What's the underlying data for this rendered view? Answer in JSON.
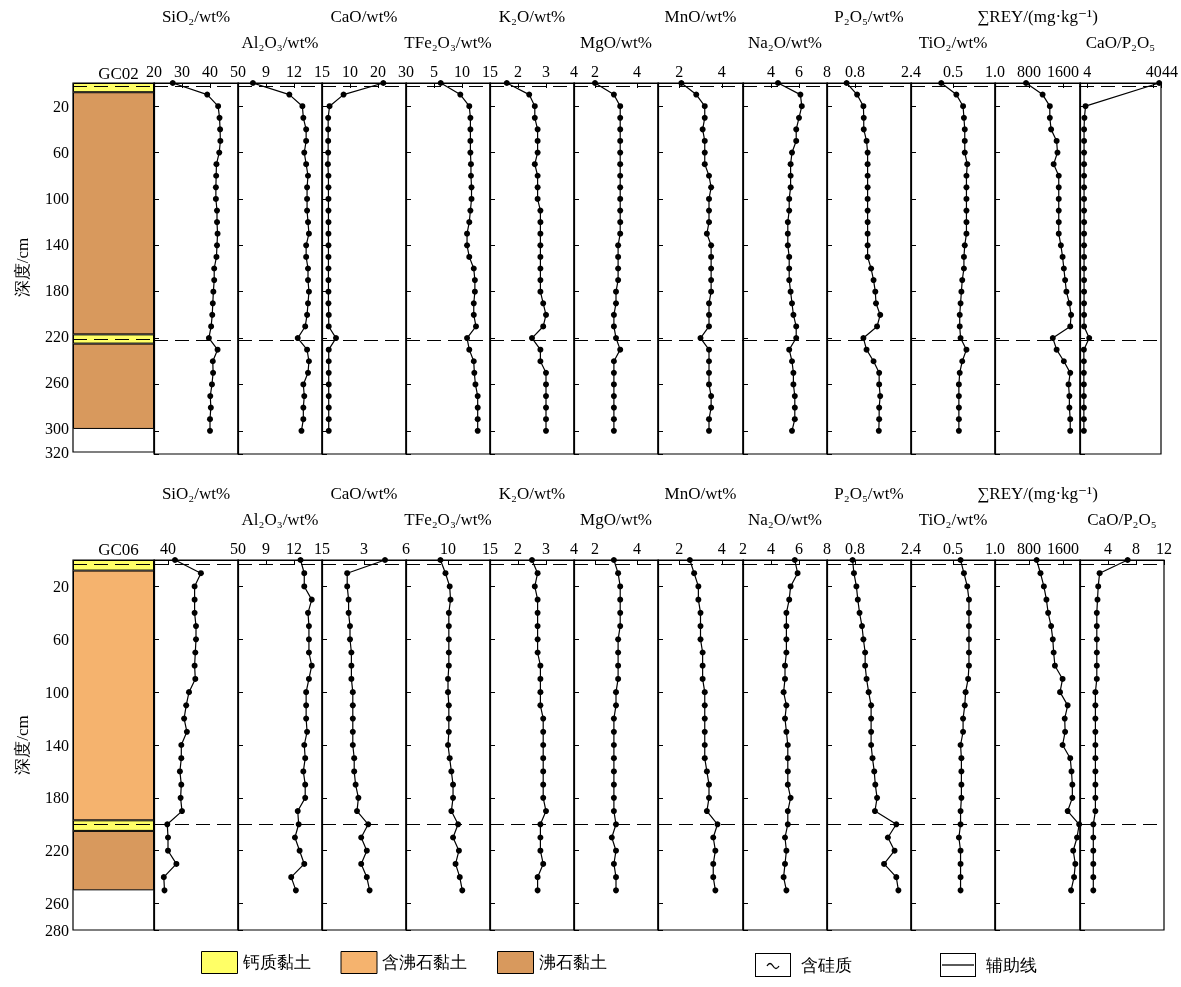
{
  "chart_data": [
    {
      "type": "bar",
      "title": "GC02",
      "ylabel": "深度/cm",
      "categories": [
        null
      ],
      "stacked": true,
      "ylim": [
        320,
        0
      ],
      "yticks": [
        20,
        60,
        100,
        140,
        180,
        220,
        260,
        300,
        320
      ],
      "tick_labels": "y",
      "ref_lines": [
        {
          "axis": "y",
          "value": 3,
          "line_style": "dashed",
          "color": "#000000"
        },
        {
          "axis": "y",
          "value": 222,
          "line_style": "dashed",
          "color": "#000000"
        }
      ],
      "series": [
        {
          "color": "#ffff66",
          "values": [
            8
          ]
        },
        {
          "color": "#d8995d",
          "values": [
            210
          ]
        },
        {
          "color": "#ffff66",
          "values": [
            8
          ]
        },
        {
          "color": "#d8995d",
          "values": [
            74
          ]
        }
      ]
    },
    {
      "type": "line",
      "xlabel": "SiO₂/wt%",
      "xlim": [
        20,
        50
      ],
      "xticks": [
        20,
        30,
        40,
        50
      ],
      "ylim": [
        320,
        0
      ],
      "yticks": [
        20,
        60,
        100,
        140,
        180,
        220,
        260,
        300,
        320
      ],
      "tick_labels": "x",
      "color": "#000000",
      "marker": "circle",
      "ref_lines": [
        {
          "axis": "y",
          "value": 3,
          "line_style": "dashed",
          "color": "#000000"
        },
        {
          "axis": "y",
          "value": 222,
          "line_style": "dashed",
          "color": "#000000"
        }
      ],
      "x": [
        26.7,
        39.0,
        42.9,
        43.4,
        43.6,
        43.7,
        43.3,
        42.3,
        42.2,
        42.1,
        42.1,
        42.5,
        42.5,
        42.7,
        42.5,
        42.3,
        41.5,
        41.5,
        41.2,
        41.0,
        40.8,
        40.4,
        39.6,
        42.7,
        41.0,
        41.1,
        40.7,
        40.1,
        40.3,
        40.0,
        40.0
      ],
      "values": [
        0,
        10,
        20,
        30,
        40,
        50,
        60,
        70,
        80,
        90,
        100,
        110,
        120,
        130,
        140,
        150,
        160,
        170,
        180,
        190,
        200,
        210,
        220,
        230,
        240,
        250,
        260,
        270,
        280,
        290,
        300
      ]
    },
    {
      "type": "line",
      "xlabel": "Al₂O₃/wt%",
      "xlim": [
        6,
        15
      ],
      "xticks": [
        9,
        12,
        15
      ],
      "ylim": [
        320,
        0
      ],
      "yticks": [
        20,
        60,
        100,
        140,
        180,
        220,
        260,
        300,
        320
      ],
      "tick_labels": "x",
      "color": "#000000",
      "marker": "circle",
      "ref_lines": [
        {
          "axis": "y",
          "value": 3,
          "line_style": "dashed",
          "color": "#000000"
        },
        {
          "axis": "y",
          "value": 222,
          "line_style": "dashed",
          "color": "#000000"
        }
      ],
      "x": [
        7.6,
        11.5,
        12.9,
        13.0,
        13.3,
        13.3,
        13.1,
        13.3,
        13.5,
        13.4,
        13.4,
        13.4,
        13.5,
        13.6,
        13.3,
        13.3,
        13.5,
        13.5,
        13.6,
        13.5,
        13.4,
        13.2,
        12.4,
        13.4,
        13.6,
        13.5,
        13.0,
        13.1,
        13.0,
        13.0,
        12.8
      ],
      "values": [
        0,
        10,
        20,
        30,
        40,
        50,
        60,
        70,
        80,
        90,
        100,
        110,
        120,
        130,
        140,
        150,
        160,
        170,
        180,
        190,
        200,
        210,
        220,
        230,
        240,
        250,
        260,
        270,
        280,
        290,
        300
      ]
    },
    {
      "type": "line",
      "xlabel": "CaO/wt%",
      "xlim": [
        0,
        30
      ],
      "xticks": [
        10,
        20,
        30
      ],
      "ylim": [
        320,
        0
      ],
      "yticks": [
        20,
        60,
        100,
        140,
        180,
        220,
        260,
        300,
        320
      ],
      "tick_labels": "x",
      "color": "#000000",
      "marker": "circle",
      "ref_lines": [
        {
          "axis": "y",
          "value": 3,
          "line_style": "dashed",
          "color": "#000000"
        },
        {
          "axis": "y",
          "value": 222,
          "line_style": "dashed",
          "color": "#000000"
        }
      ],
      "x": [
        21.9,
        7.7,
        2.7,
        2.2,
        2.2,
        2.2,
        2.2,
        2.1,
        2.3,
        2.3,
        2.3,
        2.3,
        2.3,
        2.3,
        2.3,
        2.3,
        2.3,
        2.3,
        2.3,
        2.3,
        2.4,
        2.4,
        5.0,
        2.4,
        2.4,
        2.4,
        2.4,
        2.4,
        2.4,
        2.4,
        2.4
      ],
      "values": [
        0,
        10,
        20,
        30,
        40,
        50,
        60,
        70,
        80,
        90,
        100,
        110,
        120,
        130,
        140,
        150,
        160,
        170,
        180,
        190,
        200,
        210,
        220,
        230,
        240,
        250,
        260,
        270,
        280,
        290,
        300
      ]
    },
    {
      "type": "line",
      "xlabel": "TFe₂O₃/wt%",
      "xlim": [
        0,
        15
      ],
      "xticks": [
        5,
        10,
        15
      ],
      "ylim": [
        320,
        0
      ],
      "yticks": [
        20,
        60,
        100,
        140,
        180,
        220,
        260,
        300,
        320
      ],
      "tick_labels": "x",
      "color": "#000000",
      "marker": "circle",
      "ref_lines": [
        {
          "axis": "y",
          "value": 3,
          "line_style": "dashed",
          "color": "#000000"
        },
        {
          "axis": "y",
          "value": 222,
          "line_style": "dashed",
          "color": "#000000"
        }
      ],
      "x": [
        6.2,
        9.7,
        11.3,
        11.5,
        11.5,
        11.5,
        11.5,
        11.6,
        11.6,
        11.7,
        11.7,
        11.5,
        11.3,
        10.9,
        10.9,
        11.3,
        12.1,
        12.3,
        12.3,
        12.1,
        12.1,
        12.5,
        10.9,
        11.3,
        12.1,
        12.2,
        12.4,
        12.8,
        12.8,
        12.8,
        12.8
      ],
      "values": [
        0,
        10,
        20,
        30,
        40,
        50,
        60,
        70,
        80,
        90,
        100,
        110,
        120,
        130,
        140,
        150,
        160,
        170,
        180,
        190,
        200,
        210,
        220,
        230,
        240,
        250,
        260,
        270,
        280,
        290,
        300
      ]
    },
    {
      "type": "line",
      "xlabel": "K₂O/wt%",
      "xlim": [
        1,
        4
      ],
      "xticks": [
        2,
        3,
        4
      ],
      "ylim": [
        320,
        0
      ],
      "yticks": [
        20,
        60,
        100,
        140,
        180,
        220,
        260,
        300,
        320
      ],
      "tick_labels": "x",
      "color": "#000000",
      "marker": "circle",
      "ref_lines": [
        {
          "axis": "y",
          "value": 3,
          "line_style": "dashed",
          "color": "#000000"
        },
        {
          "axis": "y",
          "value": 222,
          "line_style": "dashed",
          "color": "#000000"
        }
      ],
      "x": [
        1.6,
        2.4,
        2.6,
        2.6,
        2.7,
        2.7,
        2.7,
        2.6,
        2.7,
        2.7,
        2.7,
        2.8,
        2.8,
        2.8,
        2.8,
        2.8,
        2.8,
        2.8,
        2.8,
        2.9,
        3.0,
        2.9,
        2.5,
        2.8,
        2.8,
        3.0,
        3.0,
        3.0,
        3.0,
        3.0,
        3.0
      ],
      "values": [
        0,
        10,
        20,
        30,
        40,
        50,
        60,
        70,
        80,
        90,
        100,
        110,
        120,
        130,
        140,
        150,
        160,
        170,
        180,
        190,
        200,
        210,
        220,
        230,
        240,
        250,
        260,
        270,
        280,
        290,
        300
      ]
    },
    {
      "type": "line",
      "xlabel": "MgO/wt%",
      "xlim": [
        1,
        5
      ],
      "xticks": [
        2,
        4
      ],
      "ylim": [
        320,
        0
      ],
      "yticks": [
        20,
        60,
        100,
        140,
        180,
        220,
        260,
        300,
        320
      ],
      "tick_labels": "x",
      "color": "#000000",
      "marker": "circle",
      "ref_lines": [
        {
          "axis": "y",
          "value": 3,
          "line_style": "dashed",
          "color": "#000000"
        },
        {
          "axis": "y",
          "value": 222,
          "line_style": "dashed",
          "color": "#000000"
        }
      ],
      "x": [
        2.0,
        2.9,
        3.2,
        3.2,
        3.2,
        3.2,
        3.2,
        3.2,
        3.2,
        3.2,
        3.2,
        3.2,
        3.2,
        3.2,
        3.1,
        3.1,
        3.1,
        3.1,
        3.0,
        3.0,
        2.9,
        2.9,
        3.0,
        3.2,
        2.9,
        2.9,
        2.9,
        2.9,
        2.9,
        2.9,
        2.9
      ],
      "values": [
        0,
        10,
        20,
        30,
        40,
        50,
        60,
        70,
        80,
        90,
        100,
        110,
        120,
        130,
        140,
        150,
        160,
        170,
        180,
        190,
        200,
        210,
        220,
        230,
        240,
        250,
        260,
        270,
        280,
        290,
        300
      ]
    },
    {
      "type": "line",
      "xlabel": "MnO/wt%",
      "xlim": [
        1,
        5
      ],
      "xticks": [
        2,
        4
      ],
      "ylim": [
        320,
        0
      ],
      "yticks": [
        20,
        60,
        100,
        140,
        180,
        220,
        260,
        300,
        320
      ],
      "tick_labels": "x",
      "color": "#000000",
      "marker": "circle",
      "ref_lines": [
        {
          "axis": "y",
          "value": 3,
          "line_style": "dashed",
          "color": "#000000"
        },
        {
          "axis": "y",
          "value": 222,
          "line_style": "dashed",
          "color": "#000000"
        }
      ],
      "x": [
        2.1,
        2.8,
        3.2,
        3.2,
        3.1,
        3.2,
        3.2,
        3.2,
        3.4,
        3.5,
        3.4,
        3.4,
        3.4,
        3.3,
        3.5,
        3.5,
        3.5,
        3.5,
        3.5,
        3.4,
        3.4,
        3.4,
        3.0,
        3.4,
        3.4,
        3.4,
        3.4,
        3.5,
        3.5,
        3.4,
        3.4
      ],
      "values": [
        0,
        10,
        20,
        30,
        40,
        50,
        60,
        70,
        80,
        90,
        100,
        110,
        120,
        130,
        140,
        150,
        160,
        170,
        180,
        190,
        200,
        210,
        220,
        230,
        240,
        250,
        260,
        270,
        280,
        290,
        300
      ]
    },
    {
      "type": "line",
      "xlabel": "Na₂O/wt%",
      "xlim": [
        2,
        8
      ],
      "xticks": [
        4,
        6,
        8
      ],
      "ylim": [
        320,
        0
      ],
      "yticks": [
        20,
        60,
        100,
        140,
        180,
        220,
        260,
        300,
        320
      ],
      "tick_labels": "x",
      "color": "#000000",
      "marker": "circle",
      "ref_lines": [
        {
          "axis": "y",
          "value": 3,
          "line_style": "dashed",
          "color": "#000000"
        },
        {
          "axis": "y",
          "value": 222,
          "line_style": "dashed",
          "color": "#000000"
        }
      ],
      "x": [
        4.5,
        6.1,
        6.2,
        6.0,
        5.8,
        5.8,
        5.5,
        5.4,
        5.4,
        5.4,
        5.3,
        5.3,
        5.2,
        5.2,
        5.2,
        5.3,
        5.3,
        5.3,
        5.4,
        5.5,
        5.6,
        5.8,
        5.8,
        5.3,
        5.5,
        5.6,
        5.6,
        5.7,
        5.7,
        5.7,
        5.5
      ],
      "values": [
        0,
        10,
        20,
        30,
        40,
        50,
        60,
        70,
        80,
        90,
        100,
        110,
        120,
        130,
        140,
        150,
        160,
        170,
        180,
        190,
        200,
        210,
        220,
        230,
        240,
        250,
        260,
        270,
        280,
        290,
        300
      ]
    },
    {
      "type": "line",
      "xlabel": "P₂O₅/wt%",
      "xlim": [
        0,
        2.4
      ],
      "xticks": [
        0.8,
        2.4
      ],
      "ylim": [
        320,
        0
      ],
      "yticks": [
        20,
        60,
        100,
        140,
        180,
        220,
        260,
        300,
        320
      ],
      "tick_labels": "x",
      "color": "#000000",
      "marker": "circle",
      "ref_lines": [
        {
          "axis": "y",
          "value": 3,
          "line_style": "dashed",
          "color": "#000000"
        },
        {
          "axis": "y",
          "value": 222,
          "line_style": "dashed",
          "color": "#000000"
        }
      ],
      "x": [
        0.56,
        0.86,
        1.04,
        1.05,
        1.05,
        1.13,
        1.16,
        1.16,
        1.16,
        1.16,
        1.16,
        1.16,
        1.16,
        1.16,
        1.16,
        1.16,
        1.26,
        1.33,
        1.38,
        1.4,
        1.52,
        1.43,
        1.04,
        1.13,
        1.33,
        1.49,
        1.49,
        1.52,
        1.49,
        1.49,
        1.48
      ],
      "values": [
        0,
        10,
        20,
        30,
        40,
        50,
        60,
        70,
        80,
        90,
        100,
        110,
        120,
        130,
        140,
        150,
        160,
        170,
        180,
        190,
        200,
        210,
        220,
        230,
        240,
        250,
        260,
        270,
        280,
        290,
        300
      ]
    },
    {
      "type": "line",
      "xlabel": "TiO₂/wt%",
      "xlim": [
        0,
        1
      ],
      "xticks": [
        0.5,
        {
          "value": 1,
          "label": "1.0"
        }
      ],
      "ylim": [
        320,
        0
      ],
      "yticks": [
        20,
        60,
        100,
        140,
        180,
        220,
        260,
        300,
        320
      ],
      "tick_labels": "x",
      "color": "#000000",
      "marker": "circle",
      "ref_lines": [
        {
          "axis": "y",
          "value": 3,
          "line_style": "dashed",
          "color": "#000000"
        },
        {
          "axis": "y",
          "value": 222,
          "line_style": "dashed",
          "color": "#000000"
        }
      ],
      "x": [
        0.36,
        0.54,
        0.62,
        0.63,
        0.64,
        0.64,
        0.64,
        0.67,
        0.66,
        0.66,
        0.66,
        0.66,
        0.66,
        0.66,
        0.64,
        0.63,
        0.63,
        0.61,
        0.6,
        0.59,
        0.58,
        0.58,
        0.59,
        0.66,
        0.61,
        0.58,
        0.57,
        0.57,
        0.57,
        0.57,
        0.57
      ],
      "values": [
        0,
        10,
        20,
        30,
        40,
        50,
        60,
        70,
        80,
        90,
        100,
        110,
        120,
        130,
        140,
        150,
        160,
        170,
        180,
        190,
        200,
        210,
        220,
        230,
        240,
        250,
        260,
        270,
        280,
        290,
        300
      ]
    },
    {
      "type": "line",
      "xlabel": "∑REY/(mg·kg⁻¹)",
      "xlim": [
        0,
        2000
      ],
      "xticks": [
        800,
        1600
      ],
      "ylim": [
        320,
        0
      ],
      "yticks": [
        20,
        60,
        100,
        140,
        180,
        220,
        260,
        300,
        320
      ],
      "tick_labels": "x",
      "color": "#000000",
      "marker": "circle",
      "ref_lines": [
        {
          "axis": "y",
          "value": 3,
          "line_style": "dashed",
          "color": "#000000"
        },
        {
          "axis": "y",
          "value": 222,
          "line_style": "dashed",
          "color": "#000000"
        }
      ],
      "x": [
        730,
        1120,
        1290,
        1290,
        1320,
        1450,
        1470,
        1380,
        1500,
        1500,
        1500,
        1500,
        1500,
        1500,
        1550,
        1590,
        1620,
        1650,
        1680,
        1750,
        1790,
        1770,
        1360,
        1450,
        1620,
        1770,
        1730,
        1750,
        1750,
        1770,
        1770
      ],
      "values": [
        0,
        10,
        20,
        30,
        40,
        50,
        60,
        70,
        80,
        90,
        100,
        110,
        120,
        130,
        140,
        150,
        160,
        170,
        180,
        190,
        200,
        210,
        220,
        230,
        240,
        250,
        260,
        270,
        280,
        290,
        300
      ]
    },
    {
      "type": "line",
      "xlabel": "CaO/P₂O₅",
      "xlim": [
        0,
        44
      ],
      "xticks": [
        4,
        40,
        44
      ],
      "ylim": [
        320,
        0
      ],
      "yticks": [
        20,
        60,
        100,
        140,
        180,
        220,
        260,
        300,
        320
      ],
      "tick_labels": "x",
      "color": "#000000",
      "marker": "circle",
      "ref_lines": [
        {
          "axis": "y",
          "value": 3,
          "line_style": "dashed",
          "color": "#000000"
        },
        {
          "axis": "y",
          "value": 222,
          "line_style": "dashed",
          "color": "#000000"
        }
      ],
      "x": [
        43,
        3.0,
        2.4,
        2.2,
        2.2,
        2.2,
        2.2,
        2.2,
        2.2,
        2.2,
        2.2,
        2.2,
        2.2,
        2.2,
        2.2,
        2.2,
        2.2,
        2.2,
        2.2,
        2.2,
        2.2,
        5.0,
        2.1,
        2.1,
        2.1,
        2.1,
        2.1,
        2.1,
        2.1,
        2.1
      ],
      "values": [
        0,
        20,
        30,
        40,
        50,
        60,
        70,
        80,
        90,
        100,
        110,
        120,
        130,
        140,
        150,
        160,
        170,
        180,
        190,
        200,
        210,
        220,
        230,
        240,
        250,
        260,
        270,
        280,
        290,
        300
      ]
    },
    {
      "type": "bar",
      "title": "GC06",
      "ylabel": "深度/cm",
      "categories": [
        null
      ],
      "stacked": true,
      "ylim": [
        280,
        0
      ],
      "yticks": [
        20,
        60,
        100,
        140,
        180,
        220,
        260,
        280
      ],
      "tick_labels": "y",
      "legend": "bottom",
      "annotations": [
        "含硅质",
        "辅助线"
      ],
      "ref_lines": [
        {
          "axis": "y",
          "value": 3,
          "line_style": "dashed",
          "color": "#000000"
        },
        {
          "axis": "y",
          "value": 200,
          "line_style": "dashed",
          "color": "#000000"
        }
      ],
      "series": [
        {
          "name": "钙质黏土",
          "color": "#ffff66",
          "values": [
            8
          ]
        },
        {
          "name": "含沸石黏土",
          "color": "#f5b36e",
          "values": [
            189
          ]
        },
        {
          "color": "#ffff66",
          "values": [
            8
          ]
        },
        {
          "name": "沸石黏土",
          "color": "#d8995d",
          "values": [
            45
          ]
        }
      ]
    },
    {
      "type": "line",
      "xlabel": "SiO₂/wt%",
      "xlim": [
        38,
        50
      ],
      "xticks": [
        40,
        50
      ],
      "ylim": [
        280,
        0
      ],
      "yticks": [
        20,
        60,
        100,
        140,
        180,
        220,
        260,
        280
      ],
      "tick_labels": "x",
      "color": "#000000",
      "marker": "circle",
      "ref_lines": [
        {
          "axis": "y",
          "value": 3,
          "line_style": "dashed",
          "color": "#000000"
        },
        {
          "axis": "y",
          "value": 200,
          "line_style": "dashed",
          "color": "#000000"
        }
      ],
      "x": [
        41.0,
        44.7,
        43.8,
        43.8,
        43.8,
        44.0,
        44.0,
        43.9,
        43.8,
        43.9,
        43.0,
        42.6,
        42.3,
        42.7,
        41.9,
        41.9,
        41.7,
        41.9,
        41.8,
        42.0,
        39.9,
        40.0,
        40.0,
        41.2,
        39.4,
        39.5
      ],
      "values": [
        0,
        10,
        20,
        30,
        40,
        50,
        60,
        70,
        80,
        90,
        100,
        110,
        120,
        130,
        140,
        150,
        160,
        170,
        180,
        190,
        200,
        210,
        220,
        230,
        240,
        250
      ]
    },
    {
      "type": "line",
      "xlabel": "Al₂O₃/wt%",
      "xlim": [
        6,
        15
      ],
      "xticks": [
        9,
        12,
        15
      ],
      "ylim": [
        280,
        0
      ],
      "yticks": [
        20,
        60,
        100,
        140,
        180,
        220,
        260,
        280
      ],
      "tick_labels": "x",
      "color": "#000000",
      "marker": "circle",
      "ref_lines": [
        {
          "axis": "y",
          "value": 3,
          "line_style": "dashed",
          "color": "#000000"
        },
        {
          "axis": "y",
          "value": 200,
          "line_style": "dashed",
          "color": "#000000"
        }
      ],
      "x": [
        12.7,
        13.1,
        13.1,
        13.9,
        13.5,
        13.6,
        13.6,
        13.6,
        13.9,
        13.6,
        13.3,
        13.3,
        13.3,
        13.4,
        13.1,
        13.2,
        13.0,
        13.2,
        13.2,
        12.4,
        12.5,
        12.1,
        12.6,
        13.1,
        11.7,
        12.2
      ],
      "values": [
        0,
        10,
        20,
        30,
        40,
        50,
        60,
        70,
        80,
        90,
        100,
        110,
        120,
        130,
        140,
        150,
        160,
        170,
        180,
        190,
        200,
        210,
        220,
        230,
        240,
        250
      ]
    },
    {
      "type": "line",
      "xlabel": "CaO/wt%",
      "xlim": [
        0,
        6
      ],
      "xticks": [
        3,
        6
      ],
      "ylim": [
        280,
        0
      ],
      "yticks": [
        20,
        60,
        100,
        140,
        180,
        220,
        260,
        280
      ],
      "tick_labels": "x",
      "color": "#000000",
      "marker": "circle",
      "ref_lines": [
        {
          "axis": "y",
          "value": 3,
          "line_style": "dashed",
          "color": "#000000"
        },
        {
          "axis": "y",
          "value": 200,
          "line_style": "dashed",
          "color": "#000000"
        }
      ],
      "x": [
        4.5,
        1.8,
        1.8,
        1.9,
        1.9,
        2.0,
        2.0,
        2.1,
        2.1,
        2.1,
        2.2,
        2.2,
        2.2,
        2.2,
        2.2,
        2.3,
        2.3,
        2.4,
        2.6,
        2.5,
        3.3,
        2.8,
        3.2,
        2.8,
        3.2,
        3.4
      ],
      "values": [
        0,
        10,
        20,
        30,
        40,
        50,
        60,
        70,
        80,
        90,
        100,
        110,
        120,
        130,
        140,
        150,
        160,
        170,
        180,
        190,
        200,
        210,
        220,
        230,
        240,
        250
      ]
    },
    {
      "type": "line",
      "xlabel": "TFe₂O₃/wt%",
      "xlim": [
        5,
        15
      ],
      "xticks": [
        10,
        15
      ],
      "ylim": [
        280,
        0
      ],
      "yticks": [
        20,
        60,
        100,
        140,
        180,
        220,
        260,
        280
      ],
      "tick_labels": "x",
      "color": "#000000",
      "marker": "circle",
      "ref_lines": [
        {
          "axis": "y",
          "value": 3,
          "line_style": "dashed",
          "color": "#000000"
        },
        {
          "axis": "y",
          "value": 200,
          "line_style": "dashed",
          "color": "#000000"
        }
      ],
      "x": [
        9.1,
        9.7,
        10.2,
        10.3,
        10.1,
        10.1,
        10.1,
        10.1,
        10.1,
        10.0,
        10.0,
        10.1,
        10.1,
        10.1,
        10.0,
        10.2,
        10.4,
        10.6,
        10.6,
        10.4,
        11.2,
        10.6,
        11.3,
        10.9,
        11.4,
        11.7
      ],
      "values": [
        0,
        10,
        20,
        30,
        40,
        50,
        60,
        70,
        80,
        90,
        100,
        110,
        120,
        130,
        140,
        150,
        160,
        170,
        180,
        190,
        200,
        210,
        220,
        230,
        240,
        250
      ]
    },
    {
      "type": "line",
      "xlabel": "K₂O/wt%",
      "xlim": [
        1,
        4
      ],
      "xticks": [
        2,
        3,
        4
      ],
      "ylim": [
        280,
        0
      ],
      "yticks": [
        20,
        60,
        100,
        140,
        180,
        220,
        260,
        280
      ],
      "tick_labels": "x",
      "color": "#000000",
      "marker": "circle",
      "ref_lines": [
        {
          "axis": "y",
          "value": 3,
          "line_style": "dashed",
          "color": "#000000"
        },
        {
          "axis": "y",
          "value": 200,
          "line_style": "dashed",
          "color": "#000000"
        }
      ],
      "x": [
        2.5,
        2.7,
        2.6,
        2.7,
        2.7,
        2.7,
        2.7,
        2.7,
        2.8,
        2.8,
        2.8,
        2.8,
        2.9,
        2.9,
        2.9,
        2.9,
        2.9,
        2.9,
        2.9,
        3.0,
        2.8,
        2.8,
        2.8,
        2.9,
        2.7,
        2.7
      ],
      "values": [
        0,
        10,
        20,
        30,
        40,
        50,
        60,
        70,
        80,
        90,
        100,
        110,
        120,
        130,
        140,
        150,
        160,
        170,
        180,
        190,
        200,
        210,
        220,
        230,
        240,
        250
      ]
    },
    {
      "type": "line",
      "xlabel": "MgO/wt%",
      "xlim": [
        1,
        5
      ],
      "xticks": [
        2,
        4
      ],
      "ylim": [
        280,
        0
      ],
      "yticks": [
        20,
        60,
        100,
        140,
        180,
        220,
        260,
        280
      ],
      "tick_labels": "x",
      "color": "#000000",
      "marker": "circle",
      "ref_lines": [
        {
          "axis": "y",
          "value": 3,
          "line_style": "dashed",
          "color": "#000000"
        },
        {
          "axis": "y",
          "value": 200,
          "line_style": "dashed",
          "color": "#000000"
        }
      ],
      "x": [
        2.9,
        3.1,
        3.2,
        3.2,
        3.2,
        3.2,
        3.1,
        3.1,
        3.1,
        3.1,
        3.0,
        3.0,
        2.9,
        2.9,
        2.9,
        2.9,
        2.9,
        2.9,
        2.9,
        2.9,
        3.0,
        2.8,
        3.0,
        2.9,
        3.0,
        3.0
      ],
      "values": [
        0,
        10,
        20,
        30,
        40,
        50,
        60,
        70,
        80,
        90,
        100,
        110,
        120,
        130,
        140,
        150,
        160,
        170,
        180,
        190,
        200,
        210,
        220,
        230,
        240,
        250
      ]
    },
    {
      "type": "line",
      "xlabel": "MnO/wt%",
      "xlim": [
        1,
        5
      ],
      "xticks": [
        2,
        4
      ],
      "ylim": [
        280,
        0
      ],
      "yticks": [
        20,
        60,
        100,
        140,
        180,
        220,
        260,
        280
      ],
      "tick_labels": "x",
      "color": "#000000",
      "marker": "circle",
      "ref_lines": [
        {
          "axis": "y",
          "value": 3,
          "line_style": "dashed",
          "color": "#000000"
        },
        {
          "axis": "y",
          "value": 200,
          "line_style": "dashed",
          "color": "#000000"
        }
      ],
      "x": [
        2.5,
        2.7,
        2.9,
        2.9,
        3.0,
        3.0,
        3.0,
        3.1,
        3.1,
        3.1,
        3.2,
        3.2,
        3.2,
        3.2,
        3.2,
        3.2,
        3.3,
        3.4,
        3.4,
        3.3,
        3.8,
        3.6,
        3.7,
        3.6,
        3.6,
        3.7
      ],
      "values": [
        0,
        10,
        20,
        30,
        40,
        50,
        60,
        70,
        80,
        90,
        100,
        110,
        120,
        130,
        140,
        150,
        160,
        170,
        180,
        190,
        200,
        210,
        220,
        230,
        240,
        250
      ]
    },
    {
      "type": "line",
      "xlabel": "Na₂O/wt%",
      "xlim": [
        2,
        8
      ],
      "xticks": [
        2,
        4,
        6,
        8
      ],
      "ylim": [
        280,
        0
      ],
      "yticks": [
        20,
        60,
        100,
        140,
        180,
        220,
        260,
        280
      ],
      "tick_labels": "x",
      "color": "#000000",
      "marker": "circle",
      "ref_lines": [
        {
          "axis": "y",
          "value": 3,
          "line_style": "dashed",
          "color": "#000000"
        },
        {
          "axis": "y",
          "value": 200,
          "line_style": "dashed",
          "color": "#000000"
        }
      ],
      "x": [
        5.7,
        5.9,
        5.4,
        5.3,
        5.1,
        5.1,
        5.1,
        5.1,
        5.0,
        5.0,
        4.9,
        5.1,
        5.0,
        5.1,
        5.2,
        5.2,
        5.2,
        5.2,
        5.4,
        5.2,
        5.2,
        5.0,
        5.1,
        5.0,
        4.9,
        5.1
      ],
      "values": [
        0,
        10,
        20,
        30,
        40,
        50,
        60,
        70,
        80,
        90,
        100,
        110,
        120,
        130,
        140,
        150,
        160,
        170,
        180,
        190,
        200,
        210,
        220,
        230,
        240,
        250
      ]
    },
    {
      "type": "line",
      "xlabel": "P₂O₅/wt%",
      "xlim": [
        0,
        2.4
      ],
      "xticks": [
        0.8,
        2.4
      ],
      "ylim": [
        280,
        0
      ],
      "yticks": [
        20,
        60,
        100,
        140,
        180,
        220,
        260,
        280
      ],
      "tick_labels": "x",
      "color": "#000000",
      "marker": "circle",
      "ref_lines": [
        {
          "axis": "y",
          "value": 3,
          "line_style": "dashed",
          "color": "#000000"
        },
        {
          "axis": "y",
          "value": 200,
          "line_style": "dashed",
          "color": "#000000"
        }
      ],
      "x": [
        0.73,
        0.77,
        0.84,
        0.88,
        0.93,
        1.0,
        1.04,
        1.09,
        1.09,
        1.13,
        1.19,
        1.26,
        1.26,
        1.26,
        1.26,
        1.3,
        1.35,
        1.38,
        1.43,
        1.37,
        1.98,
        1.74,
        1.93,
        1.63,
        1.98,
        2.04
      ],
      "values": [
        0,
        10,
        20,
        30,
        40,
        50,
        60,
        70,
        80,
        90,
        100,
        110,
        120,
        130,
        140,
        150,
        160,
        170,
        180,
        190,
        200,
        210,
        220,
        230,
        240,
        250
      ]
    },
    {
      "type": "line",
      "xlabel": "TiO₂/wt%",
      "xlim": [
        0,
        1
      ],
      "xticks": [
        0.5,
        {
          "value": 1,
          "label": "1.0"
        }
      ],
      "ylim": [
        280,
        0
      ],
      "yticks": [
        20,
        60,
        100,
        140,
        180,
        220,
        260,
        280
      ],
      "tick_labels": "x",
      "color": "#000000",
      "marker": "circle",
      "ref_lines": [
        {
          "axis": "y",
          "value": 3,
          "line_style": "dashed",
          "color": "#000000"
        },
        {
          "axis": "y",
          "value": 200,
          "line_style": "dashed",
          "color": "#000000"
        }
      ],
      "x": [
        0.59,
        0.63,
        0.67,
        0.69,
        0.69,
        0.69,
        0.69,
        0.69,
        0.69,
        0.68,
        0.65,
        0.64,
        0.62,
        0.62,
        0.59,
        0.6,
        0.6,
        0.6,
        0.6,
        0.59,
        0.59,
        0.57,
        0.59,
        0.59,
        0.59,
        0.59
      ],
      "values": [
        0,
        10,
        20,
        30,
        40,
        50,
        60,
        70,
        80,
        90,
        100,
        110,
        120,
        130,
        140,
        150,
        160,
        170,
        180,
        190,
        200,
        210,
        220,
        230,
        240,
        250
      ]
    },
    {
      "type": "line",
      "xlabel": "∑REY/(mg·kg⁻¹)",
      "xlim": [
        0,
        2000
      ],
      "xticks": [
        800,
        1600
      ],
      "ylim": [
        280,
        0
      ],
      "yticks": [
        20,
        60,
        100,
        140,
        180,
        220,
        260,
        280
      ],
      "tick_labels": "x",
      "color": "#000000",
      "marker": "circle",
      "ref_lines": [
        {
          "axis": "y",
          "value": 3,
          "line_style": "dashed",
          "color": "#000000"
        },
        {
          "axis": "y",
          "value": 200,
          "line_style": "dashed",
          "color": "#000000"
        }
      ],
      "x": [
        980,
        1070,
        1150,
        1210,
        1250,
        1320,
        1360,
        1380,
        1410,
        1590,
        1530,
        1710,
        1640,
        1650,
        1590,
        1770,
        1800,
        1820,
        1820,
        1710,
        1980,
        1930,
        1840,
        1890,
        1860,
        1790
      ],
      "values": [
        0,
        10,
        20,
        30,
        40,
        50,
        60,
        70,
        80,
        90,
        100,
        110,
        120,
        130,
        140,
        150,
        160,
        170,
        180,
        190,
        200,
        210,
        220,
        230,
        240,
        250
      ]
    },
    {
      "type": "line",
      "xlabel": "CaO/P₂O₅",
      "xlim": [
        0,
        12
      ],
      "xticks": [
        4,
        8,
        12
      ],
      "ylim": [
        280,
        0
      ],
      "yticks": [
        20,
        60,
        100,
        140,
        180,
        220,
        260,
        280
      ],
      "tick_labels": "x",
      "color": "#000000",
      "marker": "circle",
      "ref_lines": [
        {
          "axis": "y",
          "value": 3,
          "line_style": "dashed",
          "color": "#000000"
        },
        {
          "axis": "y",
          "value": 200,
          "line_style": "dashed",
          "color": "#000000"
        }
      ],
      "x": [
        6.8,
        2.8,
        2.6,
        2.5,
        2.4,
        2.4,
        2.4,
        2.4,
        2.4,
        2.4,
        2.2,
        2.2,
        2.2,
        2.2,
        2.2,
        2.2,
        2.2,
        2.2,
        2.2,
        2.2,
        1.9,
        1.9,
        1.9,
        1.9,
        1.9,
        1.9
      ],
      "values": [
        0,
        10,
        20,
        30,
        40,
        50,
        60,
        70,
        80,
        90,
        100,
        110,
        120,
        130,
        140,
        150,
        160,
        170,
        180,
        190,
        200,
        210,
        220,
        230,
        240,
        250
      ]
    }
  ]
}
